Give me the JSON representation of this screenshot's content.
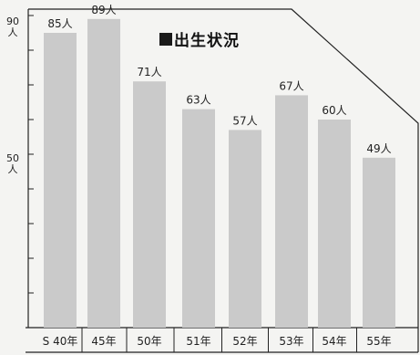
{
  "chart_data": {
    "type": "bar",
    "title": "出生状況",
    "categories": [
      "S 40年",
      "45年",
      "50年",
      "51年",
      "52年",
      "53年",
      "54年",
      "55年"
    ],
    "values": [
      85,
      89,
      71,
      63,
      57,
      67,
      60,
      49
    ],
    "value_labels": [
      "85人",
      "89人",
      "71人",
      "63人",
      "57人",
      "67人",
      "60人",
      "49人"
    ],
    "y_ticks": [
      {
        "value": 90,
        "label": "90人"
      },
      {
        "value": 50,
        "label": "50人"
      }
    ],
    "ylim": [
      0,
      90
    ],
    "bar_color": "#cacaca"
  }
}
